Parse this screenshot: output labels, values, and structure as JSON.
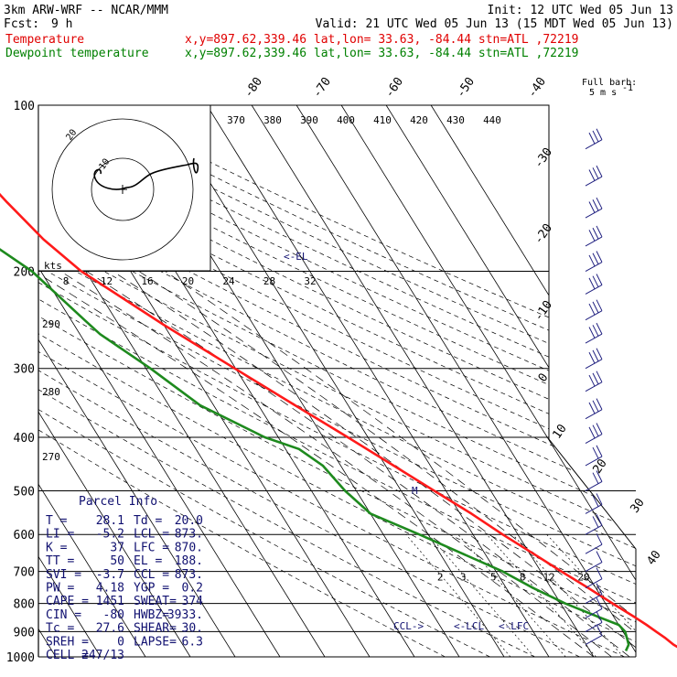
{
  "header": {
    "title": "3km ARW-WRF -- NCAR/MMM",
    "init": "Init: 12 UTC Wed 05 Jun 13",
    "fcst_label": "Fcst:",
    "fcst_value": "9 h",
    "valid": "Valid: 21 UTC Wed 05 Jun 13 (15 MDT Wed 05 Jun 13)",
    "lines": [
      {
        "label": "Temperature",
        "loc": "x,y=897.62,339.46   lat,lon= 33.63, -84.44   stn=ATL ,72219",
        "color": "#e00000"
      },
      {
        "label": "Dewpoint temperature",
        "loc": "x,y=897.62,339.46   lat,lon= 33.63, -84.44   stn=ATL ,72219",
        "color": "#008000"
      }
    ]
  },
  "colors": {
    "temperature": "#ff1a1a",
    "dewpoint": "#1e8a1e",
    "axis": "#000000",
    "label_blue": "#101070",
    "wind_barb": "#202080"
  },
  "barb_legend": {
    "line1": "Full barb:",
    "line2": "5 m s",
    "exp": "-1"
  },
  "chart_data": {
    "type": "line",
    "title": "3km ARW-WRF -- NCAR/MMM",
    "ylabel": "",
    "xlabel": "",
    "pressure_levels": [
      100,
      200,
      300,
      400,
      500,
      600,
      700,
      800,
      900,
      1000
    ],
    "pressure_tick_labels": [
      "100",
      "200",
      "300",
      "400",
      "500",
      "600",
      "700",
      "800",
      "900",
      "1000"
    ],
    "ylim": [
      1000,
      100
    ],
    "y_scale": "log-pressure",
    "isotherm_labels": [
      "-80",
      "-70",
      "-60",
      "-50",
      "-40",
      "-30",
      "-20",
      "-10",
      "0",
      "10",
      "20",
      "30",
      "40"
    ],
    "theta_labels": [
      "370",
      "380",
      "390",
      "400",
      "410",
      "420",
      "430",
      "440"
    ],
    "thetae_labels": [
      "290",
      "280",
      "270"
    ],
    "mixing_ratio_labels": [
      "2",
      "3",
      "5",
      "8",
      "12",
      "20"
    ],
    "hodograph": {
      "units": "kts",
      "ring_labels": [
        "10",
        "20"
      ],
      "x_tick_labels": [
        "8",
        "12",
        "16",
        "20",
        "24",
        "28",
        "32"
      ]
    },
    "series": [
      {
        "name": "Temperature",
        "points": [
          [
            1000,
            34.0
          ],
          [
            975,
            31.0
          ],
          [
            950,
            29.5
          ],
          [
            925,
            28.6
          ],
          [
            900,
            27.4
          ],
          [
            875,
            26.2
          ],
          [
            850,
            24.8
          ],
          [
            800,
            21.6
          ],
          [
            750,
            18.3
          ],
          [
            700,
            14.6
          ],
          [
            650,
            10.8
          ],
          [
            600,
            6.6
          ],
          [
            550,
            2.5
          ],
          [
            500,
            -2.6
          ],
          [
            450,
            -8.2
          ],
          [
            400,
            -14.5
          ],
          [
            350,
            -21.8
          ],
          [
            300,
            -30.2
          ],
          [
            250,
            -40.0
          ],
          [
            200,
            -51.0
          ],
          [
            175,
            -55.0
          ],
          [
            150,
            -58.0
          ],
          [
            125,
            -61.0
          ],
          [
            110,
            -63.0
          ],
          [
            100,
            -64.0
          ]
        ]
      },
      {
        "name": "Dewpoint temperature",
        "points": [
          [
            975,
            18.0
          ],
          [
            950,
            19.5
          ],
          [
            925,
            20.0
          ],
          [
            900,
            20.5
          ],
          [
            875,
            20.0
          ],
          [
            850,
            17.0
          ],
          [
            800,
            11.0
          ],
          [
            750,
            6.0
          ],
          [
            700,
            1.5
          ],
          [
            650,
            -5.0
          ],
          [
            600,
            -12.0
          ],
          [
            550,
            -20.0
          ],
          [
            500,
            -22.5
          ],
          [
            450,
            -24.0
          ],
          [
            420,
            -27.0
          ],
          [
            400,
            -33.0
          ],
          [
            350,
            -43.0
          ],
          [
            300,
            -49.0
          ],
          [
            260,
            -55.5
          ],
          [
            245,
            -57.0
          ],
          [
            200,
            -62.0
          ],
          [
            175,
            -68.0
          ],
          [
            150,
            -75.0
          ],
          [
            135,
            -80.0
          ],
          [
            120,
            -82.0
          ],
          [
            100,
            -85.0
          ]
        ]
      }
    ],
    "annotations": [
      "<-EL",
      "CCL->",
      "<-LCL",
      "<-LFC"
    ],
    "wind_barbs": [
      {
        "p": 120,
        "speed_barbs": 3
      },
      {
        "p": 140,
        "speed_barbs": 3
      },
      {
        "p": 160,
        "speed_barbs": 3
      },
      {
        "p": 180,
        "speed_barbs": 3
      },
      {
        "p": 200,
        "speed_barbs": 3
      },
      {
        "p": 220,
        "speed_barbs": 3
      },
      {
        "p": 245,
        "speed_barbs": 3
      },
      {
        "p": 270,
        "speed_barbs": 3
      },
      {
        "p": 300,
        "speed_barbs": 3
      },
      {
        "p": 330,
        "speed_barbs": 3
      },
      {
        "p": 370,
        "speed_barbs": 3
      },
      {
        "p": 410,
        "speed_barbs": 3
      },
      {
        "p": 450,
        "speed_barbs": 2
      },
      {
        "p": 500,
        "speed_barbs": 2
      },
      {
        "p": 550,
        "speed_barbs": 2
      },
      {
        "p": 600,
        "speed_barbs": 2
      },
      {
        "p": 650,
        "speed_barbs": 1
      },
      {
        "p": 700,
        "speed_barbs": 1
      },
      {
        "p": 750,
        "speed_barbs": 1
      },
      {
        "p": 800,
        "speed_barbs": 1
      },
      {
        "p": 850,
        "speed_barbs": 1
      },
      {
        "p": 900,
        "speed_barbs": 1
      },
      {
        "p": 950,
        "speed_barbs": 1
      }
    ]
  },
  "parcel_info": {
    "title": "Parcel Info",
    "rows": [
      [
        "T  =",
        "28.1",
        "Td =",
        "20.0"
      ],
      [
        "LI =",
        "-5.2",
        "LCL =",
        "873."
      ],
      [
        "K  =",
        "37",
        "LFC =",
        "870."
      ],
      [
        "TT =",
        "50",
        "EL  =",
        "188."
      ],
      [
        "SVI =",
        "-3.7",
        "CCL =",
        "873."
      ],
      [
        "PW =",
        "4.18",
        "YGP =",
        "0.2"
      ],
      [
        "CAPE =",
        "1451",
        "SWEAT=",
        "374"
      ],
      [
        "CIN =",
        "-80",
        "HWBZ=",
        "3933."
      ],
      [
        "Tc =",
        "27.6",
        "SHEAR=",
        "30."
      ],
      [
        "SREH =",
        "0",
        "LAPSE=",
        "6.3"
      ],
      [
        "CELL =",
        "247/13",
        "",
        ""
      ]
    ]
  }
}
